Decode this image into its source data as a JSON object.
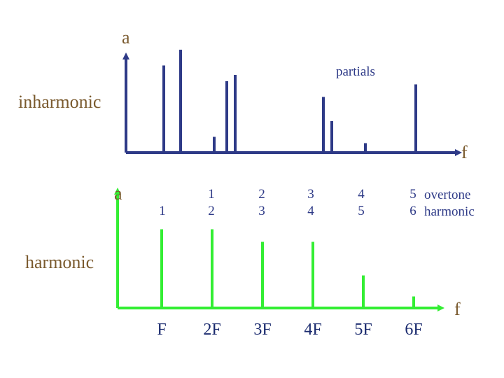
{
  "colors": {
    "inharmonic_axis": "#2e3a87",
    "harmonic_axis": "#33ee33",
    "label_brown": "#7a5a2e",
    "text": "#2e3a87"
  },
  "top_panel": {
    "title": "inharmonic",
    "y_label": "a",
    "x_label": "f",
    "note": "partials",
    "partial_heights": [
      0.83,
      0.98,
      0.15,
      0.68,
      0.74,
      0.53,
      0.3,
      0.09,
      0.65
    ]
  },
  "bottom_panel": {
    "title": "harmonic",
    "y_label": "a",
    "x_label": "f",
    "harmonic_heights": [
      0.75,
      0.75,
      0.63,
      0.63,
      0.31,
      0.11
    ],
    "freq_labels": [
      "F",
      "2F",
      "3F",
      "4F",
      "5F",
      "6F"
    ],
    "overtone_numbers": [
      "",
      "1",
      "2",
      "3",
      "4",
      "5"
    ],
    "harmonic_numbers": [
      "1",
      "2",
      "3",
      "4",
      "5",
      "6"
    ],
    "overtone_word": "overtone",
    "harmonic_word": "harmonic"
  }
}
